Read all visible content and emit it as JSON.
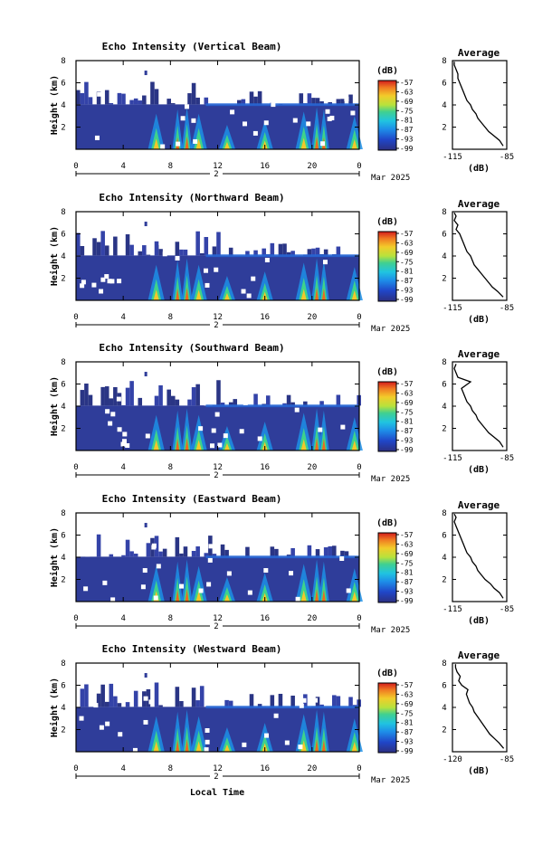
{
  "figure": {
    "shared_xlabel": "Local Time"
  },
  "chart_data": [
    {
      "type": "heatmap",
      "title": "Echo Intensity (Vertical Beam)",
      "ylabel": "Height (km)",
      "xlim": [
        0,
        24
      ],
      "ylim": [
        0,
        8
      ],
      "x_ticks": [
        "0",
        "4",
        "8",
        "12",
        "16",
        "20",
        "0"
      ],
      "y_ticks": [
        "2",
        "4",
        "6",
        "8"
      ],
      "day_label": "2",
      "date_label": "Mar 2025",
      "colorbar": {
        "unit": "(dB)",
        "ticks": [
          "-57",
          "-63",
          "-69",
          "-75",
          "-81",
          "-87",
          "-93",
          "-99"
        ]
      },
      "avg_panel": {
        "title": "Average",
        "xlabel": "(dB)",
        "x_ticks": [
          "-115",
          "-85"
        ],
        "xlim": [
          -115,
          -85
        ],
        "y_ticks": [
          "2",
          "4",
          "6",
          "8"
        ],
        "profile": [
          [
            -87,
            0.3
          ],
          [
            -89,
            0.8
          ],
          [
            -92,
            1.2
          ],
          [
            -95,
            1.6
          ],
          [
            -97,
            2
          ],
          [
            -99,
            2.4
          ],
          [
            -101,
            2.8
          ],
          [
            -102,
            3.2
          ],
          [
            -104,
            3.6
          ],
          [
            -105,
            4
          ],
          [
            -107,
            4.4
          ],
          [
            -108,
            4.8
          ],
          [
            -109,
            5.2
          ],
          [
            -110,
            5.6
          ],
          [
            -111,
            6
          ],
          [
            -112,
            6.4
          ],
          [
            -112,
            6.8
          ],
          [
            -113,
            7.2
          ],
          [
            -114,
            7.6
          ],
          [
            -114,
            7.9
          ]
        ]
      }
    },
    {
      "type": "heatmap",
      "title": "Echo Intensity (Northward Beam)",
      "ylabel": "Height (km)",
      "xlim": [
        0,
        24
      ],
      "ylim": [
        0,
        8
      ],
      "x_ticks": [
        "0",
        "4",
        "8",
        "12",
        "16",
        "20",
        "0"
      ],
      "y_ticks": [
        "2",
        "4",
        "6",
        "8"
      ],
      "day_label": "2",
      "date_label": "Mar 2025",
      "colorbar": {
        "unit": "(dB)",
        "ticks": [
          "-57",
          "-63",
          "-69",
          "-75",
          "-81",
          "-87",
          "-93",
          "-99"
        ]
      },
      "avg_panel": {
        "title": "Average",
        "xlabel": "(dB)",
        "x_ticks": [
          "-115",
          "-85"
        ],
        "xlim": [
          -115,
          -85
        ],
        "y_ticks": [
          "2",
          "4",
          "6",
          "8"
        ],
        "profile": [
          [
            -87,
            0.3
          ],
          [
            -90,
            0.8
          ],
          [
            -93,
            1.2
          ],
          [
            -95,
            1.6
          ],
          [
            -97,
            2
          ],
          [
            -99,
            2.4
          ],
          [
            -101,
            2.8
          ],
          [
            -103,
            3.2
          ],
          [
            -104,
            3.6
          ],
          [
            -105,
            4
          ],
          [
            -107,
            4.4
          ],
          [
            -108,
            4.8
          ],
          [
            -109,
            5.2
          ],
          [
            -110,
            5.6
          ],
          [
            -111,
            6
          ],
          [
            -113,
            6.4
          ],
          [
            -112,
            6.8
          ],
          [
            -114,
            7.2
          ],
          [
            -113,
            7.6
          ],
          [
            -114,
            7.9
          ]
        ]
      }
    },
    {
      "type": "heatmap",
      "title": "Echo Intensity (Southward Beam)",
      "ylabel": "Height (km)",
      "xlim": [
        0,
        24
      ],
      "ylim": [
        0,
        8
      ],
      "x_ticks": [
        "0",
        "4",
        "8",
        "12",
        "16",
        "20",
        "0"
      ],
      "y_ticks": [
        "2",
        "4",
        "6",
        "8"
      ],
      "day_label": "2",
      "date_label": "Mar 2025",
      "colorbar": {
        "unit": "(dB)",
        "ticks": [
          "-57",
          "-63",
          "-69",
          "-75",
          "-81",
          "-87",
          "-93",
          "-99"
        ]
      },
      "avg_panel": {
        "title": "Average",
        "xlabel": "(dB)",
        "x_ticks": [
          "-115",
          "-85"
        ],
        "xlim": [
          -115,
          -85
        ],
        "y_ticks": [
          "2",
          "4",
          "6",
          "8"
        ],
        "profile": [
          [
            -87,
            0.3
          ],
          [
            -89,
            0.8
          ],
          [
            -92,
            1.2
          ],
          [
            -95,
            1.6
          ],
          [
            -97,
            2
          ],
          [
            -99,
            2.4
          ],
          [
            -101,
            2.8
          ],
          [
            -102,
            3.2
          ],
          [
            -104,
            3.6
          ],
          [
            -105,
            4
          ],
          [
            -107,
            4.4
          ],
          [
            -108,
            4.8
          ],
          [
            -109,
            5.2
          ],
          [
            -110,
            5.6
          ],
          [
            -105,
            6.2
          ],
          [
            -112,
            6.6
          ],
          [
            -113,
            7
          ],
          [
            -114,
            7.4
          ],
          [
            -113,
            7.8
          ]
        ]
      }
    },
    {
      "type": "heatmap",
      "title": "Echo Intensity (Eastward Beam)",
      "ylabel": "Height (km)",
      "xlim": [
        0,
        24
      ],
      "ylim": [
        0,
        8
      ],
      "x_ticks": [
        "0",
        "4",
        "8",
        "12",
        "16",
        "20",
        "0"
      ],
      "y_ticks": [
        "2",
        "4",
        "6",
        "8"
      ],
      "day_label": "2",
      "date_label": "Mar 2025",
      "colorbar": {
        "unit": "(dB)",
        "ticks": [
          "-57",
          "-63",
          "-69",
          "-75",
          "-81",
          "-87",
          "-93",
          "-99"
        ]
      },
      "avg_panel": {
        "title": "Average",
        "xlabel": "(dB)",
        "x_ticks": [
          "-115",
          "-85"
        ],
        "xlim": [
          -115,
          -85
        ],
        "y_ticks": [
          "2",
          "4",
          "6",
          "8"
        ],
        "profile": [
          [
            -87,
            0.3
          ],
          [
            -89,
            0.8
          ],
          [
            -92,
            1.2
          ],
          [
            -94,
            1.6
          ],
          [
            -97,
            2
          ],
          [
            -99,
            2.4
          ],
          [
            -101,
            2.8
          ],
          [
            -102,
            3.2
          ],
          [
            -104,
            3.6
          ],
          [
            -105,
            4
          ],
          [
            -107,
            4.4
          ],
          [
            -108,
            4.8
          ],
          [
            -109,
            5.2
          ],
          [
            -110,
            5.6
          ],
          [
            -111,
            6
          ],
          [
            -112,
            6.4
          ],
          [
            -113,
            6.8
          ],
          [
            -114,
            7.2
          ],
          [
            -113,
            7.6
          ],
          [
            -114,
            7.9
          ]
        ]
      }
    },
    {
      "type": "heatmap",
      "title": "Echo Intensity (Westward Beam)",
      "ylabel": "Height (km)",
      "xlim": [
        0,
        24
      ],
      "ylim": [
        0,
        8
      ],
      "x_ticks": [
        "0",
        "4",
        "8",
        "12",
        "16",
        "20",
        "0"
      ],
      "y_ticks": [
        "2",
        "4",
        "6",
        "8"
      ],
      "day_label": "2",
      "date_label": "Mar 2025",
      "colorbar": {
        "unit": "(dB)",
        "ticks": [
          "-57",
          "-63",
          "-69",
          "-75",
          "-81",
          "-87",
          "-93",
          "-99"
        ]
      },
      "avg_panel": {
        "title": "Average",
        "xlabel": "(dB)",
        "x_ticks": [
          "-120",
          "-85"
        ],
        "xlim": [
          -120,
          -85
        ],
        "y_ticks": [
          "2",
          "4",
          "6",
          "8"
        ],
        "profile": [
          [
            -87,
            0.3
          ],
          [
            -90,
            0.8
          ],
          [
            -93,
            1.2
          ],
          [
            -96,
            1.6
          ],
          [
            -98,
            2
          ],
          [
            -100,
            2.4
          ],
          [
            -102,
            2.8
          ],
          [
            -104,
            3.2
          ],
          [
            -106,
            3.6
          ],
          [
            -107,
            4
          ],
          [
            -109,
            4.4
          ],
          [
            -110,
            4.8
          ],
          [
            -111,
            5.2
          ],
          [
            -110,
            5.6
          ],
          [
            -114,
            6
          ],
          [
            -116,
            6.4
          ],
          [
            -115,
            6.8
          ],
          [
            -117,
            7.2
          ],
          [
            -118,
            7.6
          ],
          [
            -118,
            7.9
          ]
        ]
      }
    }
  ]
}
